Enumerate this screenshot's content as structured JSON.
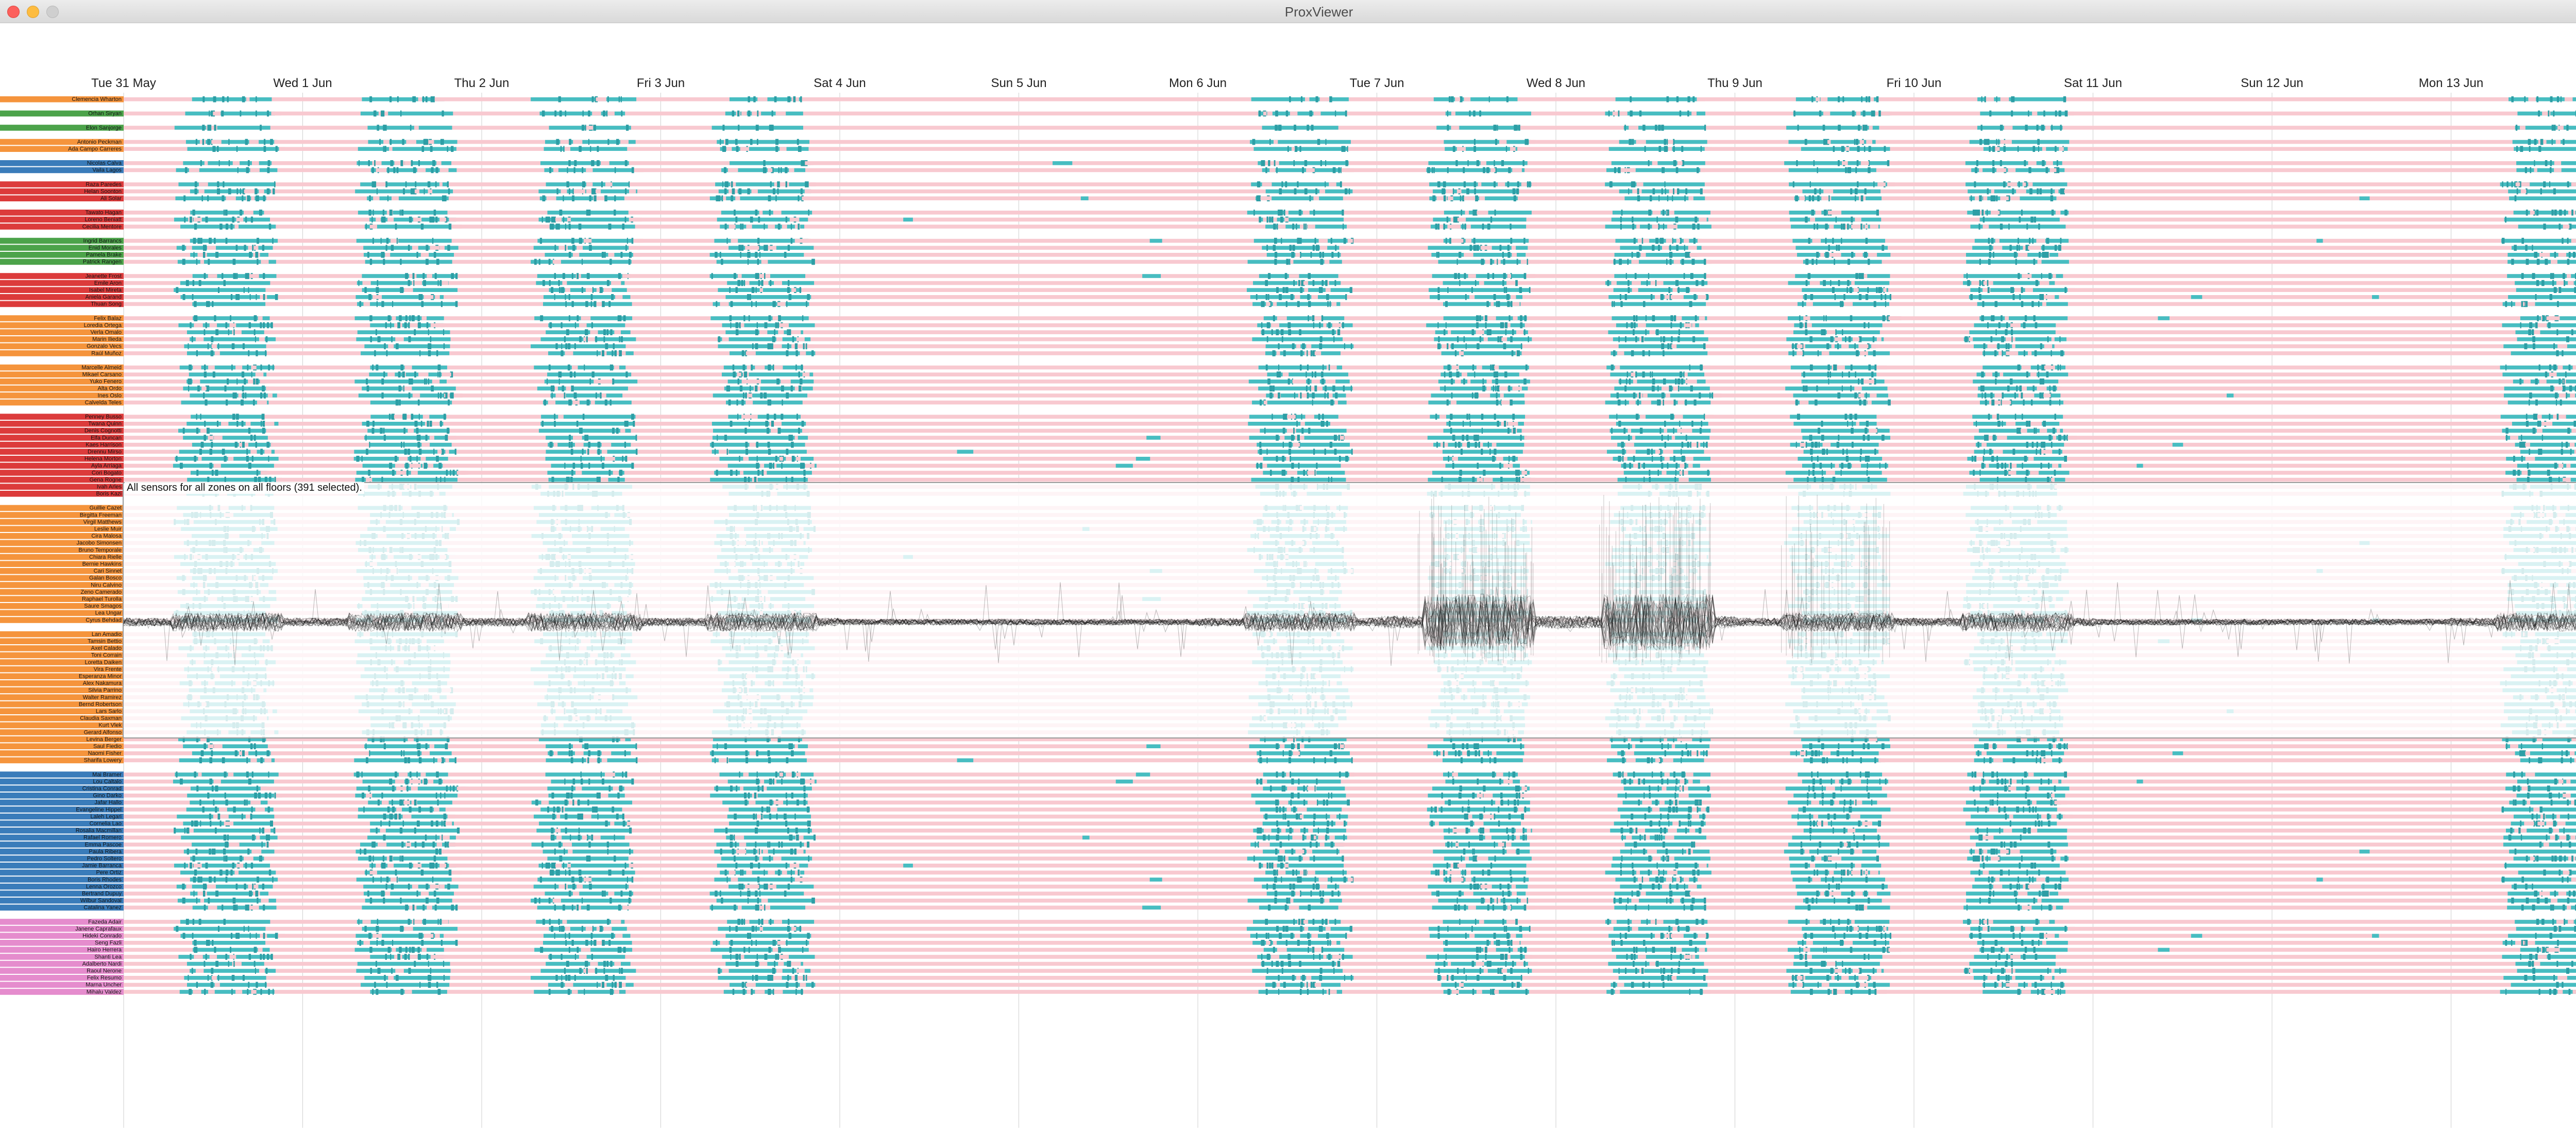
{
  "window": {
    "title": "ProxViewer"
  },
  "colors": {
    "present": "#47bdc1",
    "present_dark": "#2d9ea5",
    "absent": "#f8c9d0",
    "group": {
      "orange": "#f5943c",
      "green": "#4ca34a",
      "red": "#dc3b3b",
      "purple": "#9a6cc2",
      "blue": "#3a7cba",
      "brown": "#9c6b5e",
      "pink": "#e58ccd",
      "gray": "#9a9a9a"
    }
  },
  "axis": {
    "days": [
      "Tue 31 May",
      "Wed 1 Jun",
      "Thu 2 Jun",
      "Fri 3 Jun",
      "Sat 4 Jun",
      "Sun 5 Jun",
      "Mon 6 Jun",
      "Tue 7 Jun",
      "Wed 8 Jun",
      "Thu 9 Jun",
      "Fri 10 Jun",
      "Sat 11 Jun",
      "Sun 12 Jun",
      "Mon 13 Jun"
    ],
    "weekend_days": [
      4,
      5,
      11,
      12
    ]
  },
  "overlay": {
    "caption": "All sensors for all zones on all floors (391 selected)."
  },
  "groups": [
    {
      "color": "orange",
      "people": [
        "Clemencia Wharton"
      ]
    },
    {
      "color": "green",
      "people": [
        "Orhan Siryan"
      ]
    },
    {
      "color": "green",
      "people": [
        "Elon Sanjorge"
      ]
    },
    {
      "color": "orange",
      "people": [
        "Antonio Peckman",
        "Ada Campo Carreres"
      ]
    },
    {
      "color": "blue",
      "people": [
        "Nicolas Calva",
        "Vaila Lagos"
      ]
    },
    {
      "color": "red",
      "people": [
        "Raza Paredes",
        "Helan Soonton",
        "Ali Solar"
      ]
    },
    {
      "color": "red",
      "people": [
        "Tawato Hagan",
        "Loreno Beniatt",
        "Cecilia Mentore"
      ]
    },
    {
      "color": "green",
      "people": [
        "Ingrid Barrancs",
        "Enid Morales",
        "Pamela Brake",
        "Patrick Rangen"
      ]
    },
    {
      "color": "red",
      "people": [
        "Jeanette Frost",
        "Emile Aron",
        "Isabel Mireta",
        "Aniela Garand",
        "Thuan Song"
      ]
    },
    {
      "color": "orange",
      "people": [
        "Felix Balaz",
        "Loredia Ortega",
        "Verla Omalo",
        "Marin Ilieda",
        "Gonzalo Vecs",
        "Raúl Muñoz"
      ]
    },
    {
      "color": "orange",
      "people": [
        "Marcelle Almeid",
        "Mikael Carsano",
        "Yuko Fenero",
        "Alta Ordo",
        "Ines Oslo",
        "Calvelda Teles"
      ]
    },
    {
      "color": "red",
      "people": [
        "Penney Busso",
        "Twana Quinn",
        "Denis Cognotti",
        "Elfa Duncan",
        "Kaes Harrison",
        "Drennu Mirso",
        "Helena Morton",
        "Ayla Arriaga",
        "Cori Bogato",
        "Gena Rogne",
        "Ivah Arles",
        "Boris Kazi"
      ]
    },
    {
      "color": "orange",
      "people": [
        "Guillie Cazet",
        "Birgitta Freeman",
        "Virgil Matthews",
        "Leslie Muir",
        "Cira Malosa",
        "Jacobo Simonsen",
        "Bruno Temporale",
        "Chiara Rielle",
        "Bernie Hawkins",
        "Cari Sinnet",
        "Galan Bosco",
        "Niru Calvino",
        "Zeno Camerado",
        "Raphael Turolla",
        "Saure Smagos",
        "Lea Ungar",
        "Cyrus Behdad"
      ]
    },
    {
      "color": "orange",
      "people": [
        "Lan Amadio",
        "Tamsin Bettio",
        "Axel Calado",
        "Toni Corrain",
        "Loretta Daiken",
        "Vira Frente",
        "Esperanza Minor",
        "Alex Nakamura",
        "Silvia Parrino",
        "Walter Ramirez",
        "Bernd Robertson",
        "Lars Sarlo",
        "Claudia Saxman",
        "Kurt Vlek",
        "Gerard Alfonso",
        "Levina Berger",
        "Saul Fiedio",
        "Naomi Fisher",
        "Sharifa Lowery"
      ]
    },
    {
      "color": "blue",
      "people": [
        "Mai Bramer",
        "Lou Caltalo",
        "Cristina Conrad",
        "Gino Darko",
        "Jafar Hallo",
        "Evangeline Hippel",
        "Laleh Legari",
        "Cornelia Lao",
        "Rosalia Macmillan",
        "Rafael Romero",
        "Emma Pascoe",
        "Paula Ribera",
        "Pedro Soltero",
        "Jamie Barranca",
        "Pere Ortiz",
        "Boris Rhodes",
        "Lenna Orozco",
        "Bertrand Dupuy",
        "Wilbur Sandoval",
        "Catalina Yanez"
      ]
    },
    {
      "color": "pink",
      "people": [
        "Fazeda Adair",
        "Janene Caprafaux",
        "Hideki Conrado",
        "Seng Fazli",
        "Hairo Herrera",
        "Shanti Lea",
        "Adalberto Nardi",
        "Raoul Nerone",
        "Felix Resumo",
        "Marna Uncher",
        "Mihalu Valdez"
      ]
    }
  ]
}
